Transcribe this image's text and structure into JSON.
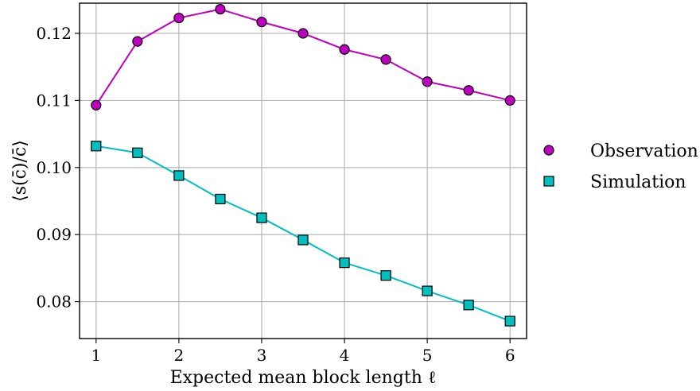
{
  "chart_data": {
    "type": "line",
    "xlabel": "Expected mean block length ℓ",
    "ylabel": "⟨s(c̄)/c̄⟩",
    "xlim": [
      0.8,
      6.2
    ],
    "ylim": [
      0.0745,
      0.1245
    ],
    "xticks": [
      1,
      2,
      3,
      4,
      5,
      6
    ],
    "xtick_labels": [
      "1",
      "2",
      "3",
      "4",
      "5",
      "6"
    ],
    "yticks": [
      0.08,
      0.09,
      0.1,
      0.11,
      0.12
    ],
    "ytick_labels": [
      "0.08",
      "0.09",
      "0.10",
      "0.11",
      "0.12"
    ],
    "grid": true,
    "legend_position": "outside-right",
    "x": [
      1,
      1.5,
      2,
      2.5,
      3,
      3.5,
      4,
      4.5,
      5,
      5.5,
      6
    ],
    "series": [
      {
        "name": "Observation",
        "marker": "circle",
        "color": "#c000c0",
        "values": [
          0.1093,
          0.1188,
          0.1223,
          0.1236,
          0.1217,
          0.12,
          0.1176,
          0.1161,
          0.1128,
          0.1115,
          0.11
        ]
      },
      {
        "name": "Simulation",
        "marker": "square",
        "color": "#00bfbf",
        "values": [
          0.1032,
          0.1022,
          0.0988,
          0.0953,
          0.0925,
          0.0892,
          0.0858,
          0.0839,
          0.0816,
          0.0795,
          0.0771
        ]
      }
    ]
  }
}
